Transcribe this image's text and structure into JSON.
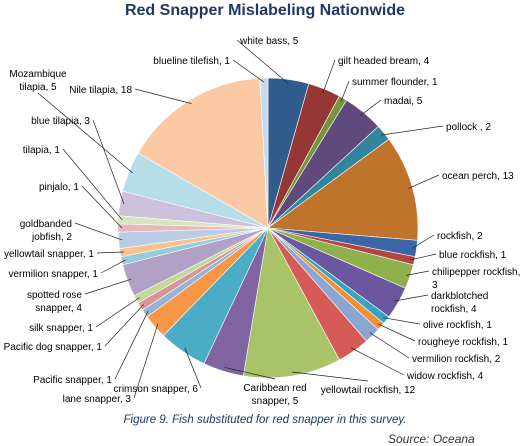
{
  "chart_data": {
    "type": "pie",
    "title": "Red Snapper Mislabeling Nationwide",
    "slices": [
      {
        "label": "white bass, 5",
        "value": 5,
        "color": "#2f5c8a"
      },
      {
        "label": "gilt headed bream, 4",
        "value": 4,
        "color": "#953735"
      },
      {
        "label": "summer flounder, 1",
        "value": 1,
        "color": "#77933c"
      },
      {
        "label": "madai, 5",
        "value": 5,
        "color": "#604a7b"
      },
      {
        "label": "pollock , 2",
        "value": 2,
        "color": "#31859c"
      },
      {
        "label": "ocean perch, 13",
        "value": 13,
        "color": "#c0732a"
      },
      {
        "label": "rockfish, 2",
        "value": 2,
        "color": "#3a66a8"
      },
      {
        "label": "blue rockfish, 1",
        "value": 1,
        "color": "#b5453f"
      },
      {
        "label": "chilipepper rockfish, 3",
        "value": 3,
        "color": "#8fb04a"
      },
      {
        "label": "darkblotched rockfish, 4",
        "value": 4,
        "color": "#6b56a0"
      },
      {
        "label": "olive rockfish, 1",
        "value": 1,
        "color": "#3aa3c0"
      },
      {
        "label": "rougheye rockfish, 1",
        "value": 1,
        "color": "#f0913a"
      },
      {
        "label": "vermilion rockfish, 2",
        "value": 2,
        "color": "#8aa6d2"
      },
      {
        "label": "widow rockfish, 4",
        "value": 4,
        "color": "#d65b56"
      },
      {
        "label": "yellowtail rockfish, 12",
        "value": 12,
        "color": "#a9c468"
      },
      {
        "label": "Caribbean red snapper, 5",
        "value": 5,
        "color": "#8064a2"
      },
      {
        "label": "crimson snapper, 6",
        "value": 6,
        "color": "#4bacc6"
      },
      {
        "label": "lane snapper, 3",
        "value": 3,
        "color": "#f79646"
      },
      {
        "label": "Pacific snapper, 1",
        "value": 1,
        "color": "#95b3d7"
      },
      {
        "label": "Pacific dog snapper, 1",
        "value": 1,
        "color": "#da9694"
      },
      {
        "label": "silk snapper, 1",
        "value": 1,
        "color": "#c3d69b"
      },
      {
        "label": "spotted rose snapper, 4",
        "value": 4,
        "color": "#b2a1c7"
      },
      {
        "label": "vermilion snapper, 1",
        "value": 1,
        "color": "#93cddd"
      },
      {
        "label": "yellowtail snapper, 1",
        "value": 1,
        "color": "#fac08f"
      },
      {
        "label": "goldbanded jobfish, 2",
        "value": 2,
        "color": "#b9cde5"
      },
      {
        "label": "pinjalo, 1",
        "value": 1,
        "color": "#e6b9b8"
      },
      {
        "label": "tilapia, 1",
        "value": 1,
        "color": "#d7e4bd"
      },
      {
        "label": "blue tilapia, 3",
        "value": 3,
        "color": "#ccc1da"
      },
      {
        "label": "Mozambique tilapia, 5",
        "value": 5,
        "color": "#b7dee8"
      },
      {
        "label": "Nile tilapia, 18",
        "value": 18,
        "color": "#fbc9a3"
      },
      {
        "label": "blueline tilefish, 1",
        "value": 1,
        "color": "#c5d9f1"
      }
    ]
  },
  "caption": "Figure 9. Fish substituted for red snapper in this survey.",
  "source": "Source: Oceana"
}
